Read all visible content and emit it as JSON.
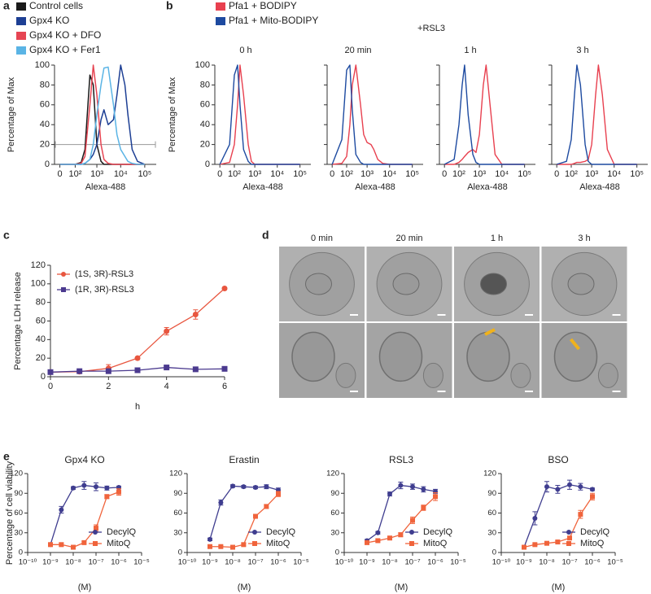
{
  "chart_data": [
    {
      "panel": "a",
      "type": "line",
      "xscale": "biexponential",
      "ylabel": "Percentage of Max",
      "xlabel": "Alexa-488",
      "x": [
        0,
        100,
        200,
        300,
        500,
        700,
        1000,
        1500,
        2000,
        3000,
        5000,
        7000,
        10000,
        15000,
        20000,
        30000,
        50000,
        100000
      ],
      "xlim": [
        -20,
        300000
      ],
      "xticks": [
        0,
        {
          "value": 100,
          "label": "10²"
        },
        {
          "value": 1000,
          "label": "10³"
        },
        {
          "value": 10000,
          "label": "10⁴"
        },
        {
          "value": 100000,
          "label": "10⁵"
        }
      ],
      "ylim": [
        0,
        100
      ],
      "yticks": [
        0,
        20,
        40,
        60,
        80,
        100
      ],
      "hline": 20,
      "hline_color": "#999999",
      "legend": "above",
      "series": [
        {
          "name": "Control cells",
          "color": "#1a1a1a",
          "values": [
            0,
            0,
            2,
            15,
            90,
            80,
            20,
            3,
            0,
            0,
            0,
            0,
            0,
            0,
            0,
            0,
            0,
            0
          ]
        },
        {
          "name": "Gpx4 KO",
          "color": "#1d3f94",
          "values": [
            0,
            0,
            0,
            1,
            5,
            10,
            20,
            45,
            55,
            40,
            45,
            70,
            100,
            80,
            50,
            15,
            3,
            0
          ]
        },
        {
          "name": "Gpx4 KO + DFO",
          "color": "#e64553",
          "values": [
            0,
            0,
            1,
            8,
            60,
            100,
            70,
            20,
            5,
            1,
            0,
            0,
            0,
            0,
            0,
            0,
            0,
            0
          ]
        },
        {
          "name": "Gpx4 KO + Fer1",
          "color": "#5ab4e5",
          "values": [
            0,
            0,
            0,
            1,
            5,
            20,
            50,
            80,
            97,
            98,
            60,
            30,
            15,
            8,
            3,
            1,
            0,
            0
          ]
        }
      ]
    },
    {
      "panel": "b",
      "type": "line",
      "xscale": "biexponential",
      "annotation": "+RSL3",
      "ylabel": "Percentage of Max",
      "xlabel": "Alexa-488",
      "facet_titles": [
        "0 h",
        "20 min",
        "1 h",
        "3 h"
      ],
      "x": [
        0,
        50,
        100,
        150,
        200,
        300,
        500,
        700,
        1000,
        1500,
        2000,
        3000,
        5000,
        10000,
        100000
      ],
      "xlim": [
        -20,
        300000
      ],
      "xticks": [
        0,
        {
          "value": 100,
          "label": "10²"
        },
        {
          "value": 1000,
          "label": "10³"
        },
        {
          "value": 10000,
          "label": "10⁴"
        },
        {
          "value": 100000,
          "label": "10⁵"
        }
      ],
      "ylim": [
        0,
        100
      ],
      "yticks": [
        0,
        20,
        40,
        60,
        80,
        100
      ],
      "legend": "above",
      "series": [
        {
          "name": "Pfa1 + BODIPY",
          "color": "#e8404f",
          "values": [
            [
              0,
              2,
              20,
              60,
              100,
              70,
              20,
              3,
              0,
              0,
              0,
              0,
              0,
              0,
              0
            ],
            [
              0,
              1,
              8,
              40,
              80,
              100,
              60,
              30,
              22,
              20,
              15,
              5,
              1,
              0,
              0
            ],
            [
              0,
              0,
              2,
              5,
              8,
              12,
              15,
              12,
              30,
              80,
              100,
              60,
              10,
              0,
              0
            ],
            [
              0,
              0,
              0,
              1,
              2,
              2,
              3,
              5,
              20,
              70,
              100,
              70,
              15,
              0,
              0
            ]
          ]
        },
        {
          "name": "Pfa1 + Mito-BODIPY",
          "color": "#1d4aa0",
          "values": [
            [
              0,
              20,
              90,
              100,
              60,
              15,
              3,
              0,
              0,
              0,
              0,
              0,
              0,
              0,
              0
            ],
            [
              0,
              25,
              95,
              100,
              55,
              10,
              2,
              0,
              0,
              0,
              0,
              0,
              0,
              0,
              0
            ],
            [
              0,
              5,
              40,
              80,
              100,
              50,
              10,
              2,
              0,
              0,
              0,
              0,
              0,
              0,
              0
            ],
            [
              0,
              3,
              25,
              70,
              100,
              80,
              20,
              3,
              0,
              0,
              0,
              0,
              0,
              0,
              0
            ]
          ]
        }
      ]
    },
    {
      "panel": "c",
      "type": "line",
      "xlabel": "h",
      "ylabel": "Percentage LDH release",
      "x": [
        0,
        1,
        2,
        3,
        4,
        5,
        6
      ],
      "xlim": [
        0,
        6
      ],
      "xticks": [
        0,
        2,
        4,
        6
      ],
      "ylim": [
        0,
        120
      ],
      "yticks": [
        0,
        20,
        40,
        60,
        80,
        100,
        120
      ],
      "legend": "upper left",
      "series": [
        {
          "name": "(1S, 3R)-RSL3",
          "color": "#e8563f",
          "marker": "circle",
          "values": [
            5,
            5.5,
            9,
            20,
            49,
            67,
            95
          ],
          "errors": [
            1,
            1,
            4,
            1.5,
            4,
            5,
            1.5
          ]
        },
        {
          "name": "(1R, 3R)-RSL3",
          "color": "#4b3a8f",
          "marker": "square",
          "values": [
            5,
            6,
            6,
            7,
            10,
            8,
            8.5
          ],
          "errors": [
            1,
            1,
            1,
            1,
            1,
            1,
            1
          ]
        }
      ]
    },
    {
      "panel": "d",
      "type": "image-grid",
      "column_titles": [
        "0 min",
        "20 min",
        "1 h",
        "3 h"
      ],
      "rows": 2
    },
    {
      "panel": "e",
      "type": "line",
      "xscale": "log",
      "title": "Gpx4 KO",
      "ylabel": "Percentage of cell viability",
      "xlabel": "(M)",
      "x": [
        1e-09,
        3e-09,
        1e-08,
        3e-08,
        1e-07,
        3e-07,
        1e-06
      ],
      "xlim": [
        1e-10,
        1e-05
      ],
      "xticks": [
        {
          "value": 1e-10,
          "label": "10⁻¹⁰"
        },
        {
          "value": 1e-09,
          "label": "10⁻⁹"
        },
        {
          "value": 1e-08,
          "label": "10⁻⁸"
        },
        {
          "value": 1e-07,
          "label": "10⁻⁷"
        },
        {
          "value": 1e-06,
          "label": "10⁻⁶"
        },
        {
          "value": 1e-05,
          "label": "10⁻⁵"
        }
      ],
      "ylim": [
        0,
        120
      ],
      "yticks": [
        0,
        30,
        60,
        90,
        120
      ],
      "legend": "lower right",
      "series": [
        {
          "name": "DecylQ",
          "color": "#3f3d8f",
          "marker": "circle",
          "values": [
            12,
            65,
            98,
            102,
            100,
            98,
            99
          ],
          "errors": [
            2,
            5,
            2,
            6,
            6,
            3,
            2
          ]
        },
        {
          "name": "MitoQ",
          "color": "#f0643c",
          "marker": "square",
          "values": [
            12,
            12,
            8,
            15,
            37,
            85,
            92
          ],
          "errors": [
            2,
            2,
            2,
            2,
            5,
            3,
            5
          ]
        }
      ]
    },
    {
      "type": "line",
      "xscale": "log",
      "title": "Erastin",
      "xlabel": "(M)",
      "x": [
        1e-09,
        3e-09,
        1e-08,
        3e-08,
        1e-07,
        3e-07,
        1e-06
      ],
      "xlim": [
        1e-10,
        1e-05
      ],
      "xticks": [
        {
          "value": 1e-10,
          "label": "10⁻¹⁰"
        },
        {
          "value": 1e-09,
          "label": "10⁻⁹"
        },
        {
          "value": 1e-08,
          "label": "10⁻⁸"
        },
        {
          "value": 1e-07,
          "label": "10⁻⁷"
        },
        {
          "value": 1e-06,
          "label": "10⁻⁶"
        },
        {
          "value": 1e-05,
          "label": "10⁻⁵"
        }
      ],
      "ylim": [
        0,
        120
      ],
      "yticks": [
        0,
        30,
        60,
        90,
        120
      ],
      "legend": "lower right",
      "series": [
        {
          "name": "DecylQ",
          "color": "#3f3d8f",
          "marker": "circle",
          "values": [
            20,
            76,
            101,
            100,
            99,
            100,
            95
          ],
          "errors": [
            2,
            4,
            2,
            2,
            2,
            3,
            3
          ]
        },
        {
          "name": "MitoQ",
          "color": "#f0643c",
          "marker": "square",
          "values": [
            9,
            9,
            8,
            12,
            55,
            70,
            89
          ],
          "errors": [
            1,
            1,
            1,
            2,
            3,
            3,
            4
          ]
        }
      ]
    },
    {
      "type": "line",
      "xscale": "log",
      "title": "RSL3",
      "xlabel": "(M)",
      "x": [
        1e-09,
        3e-09,
        1e-08,
        3e-08,
        1e-07,
        3e-07,
        1e-06
      ],
      "xlim": [
        1e-10,
        1e-05
      ],
      "xticks": [
        {
          "value": 1e-10,
          "label": "10⁻¹⁰"
        },
        {
          "value": 1e-09,
          "label": "10⁻⁹"
        },
        {
          "value": 1e-08,
          "label": "10⁻⁸"
        },
        {
          "value": 1e-07,
          "label": "10⁻⁷"
        },
        {
          "value": 1e-06,
          "label": "10⁻⁶"
        },
        {
          "value": 1e-05,
          "label": "10⁻⁵"
        }
      ],
      "ylim": [
        0,
        120
      ],
      "yticks": [
        0,
        30,
        60,
        90,
        120
      ],
      "legend": "lower right",
      "series": [
        {
          "name": "DecylQ",
          "color": "#3f3d8f",
          "marker": "circle",
          "values": [
            18,
            30,
            89,
            102,
            100,
            96,
            93
          ],
          "errors": [
            2,
            2,
            3,
            5,
            4,
            4,
            3
          ]
        },
        {
          "name": "MitoQ",
          "color": "#f0643c",
          "marker": "square",
          "values": [
            15,
            18,
            22,
            27,
            49,
            68,
            85
          ],
          "errors": [
            2,
            2,
            2,
            3,
            5,
            4,
            6
          ]
        }
      ]
    },
    {
      "type": "line",
      "xscale": "log",
      "title": "BSO",
      "xlabel": "(M)",
      "x": [
        1e-09,
        3e-09,
        1e-08,
        3e-08,
        1e-07,
        3e-07,
        1e-06
      ],
      "xlim": [
        1e-10,
        1e-05
      ],
      "xticks": [
        {
          "value": 1e-10,
          "label": "10⁻¹⁰"
        },
        {
          "value": 1e-09,
          "label": "10⁻⁹"
        },
        {
          "value": 1e-08,
          "label": "10⁻⁸"
        },
        {
          "value": 1e-07,
          "label": "10⁻⁷"
        },
        {
          "value": 1e-06,
          "label": "10⁻⁶"
        },
        {
          "value": 1e-05,
          "label": "10⁻⁵"
        }
      ],
      "ylim": [
        0,
        120
      ],
      "yticks": [
        0,
        30,
        60,
        90,
        120
      ],
      "legend": "lower right",
      "series": [
        {
          "name": "DecylQ",
          "color": "#3f3d8f",
          "marker": "circle",
          "values": [
            8,
            52,
            100,
            96,
            103,
            100,
            96
          ],
          "errors": [
            2,
            10,
            8,
            6,
            7,
            5,
            2
          ]
        },
        {
          "name": "MitoQ",
          "color": "#f0643c",
          "marker": "square",
          "values": [
            8,
            12,
            14,
            16,
            22,
            58,
            85
          ],
          "errors": [
            1,
            1,
            1,
            2,
            2,
            6,
            5
          ]
        }
      ]
    }
  ]
}
